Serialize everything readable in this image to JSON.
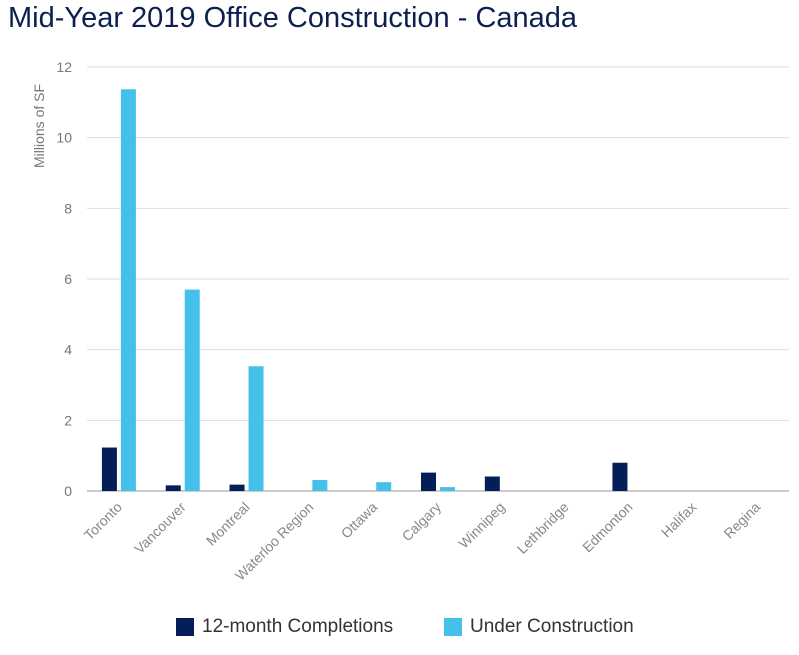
{
  "chart_data": {
    "type": "bar",
    "title": "Mid-Year 2019 Office Construction - Canada",
    "ylabel": "Millions of SF",
    "xlabel": "",
    "ylim": [
      0,
      12
    ],
    "yticks": [
      "0",
      "2",
      "4",
      "6",
      "8",
      "10",
      "12"
    ],
    "grid": true,
    "legend_position": "bottom",
    "categories": [
      "Toronto",
      "Vancouver",
      "Montreal",
      "Waterloo Region",
      "Ottawa",
      "Calgary",
      "Winnipeg",
      "Lethbridge",
      "Edmonton",
      "Halifax",
      "Regina"
    ],
    "series": [
      {
        "name": "12-month Completions",
        "color": "#041e57",
        "values": [
          1.23,
          0.16,
          0.18,
          0,
          0,
          0.52,
          0.41,
          0,
          0.8,
          0,
          0
        ]
      },
      {
        "name": "Under Construction",
        "color": "#44c1ea",
        "values": [
          11.37,
          5.7,
          3.53,
          0.31,
          0.25,
          0.11,
          0,
          0,
          0,
          0,
          0
        ]
      }
    ]
  }
}
